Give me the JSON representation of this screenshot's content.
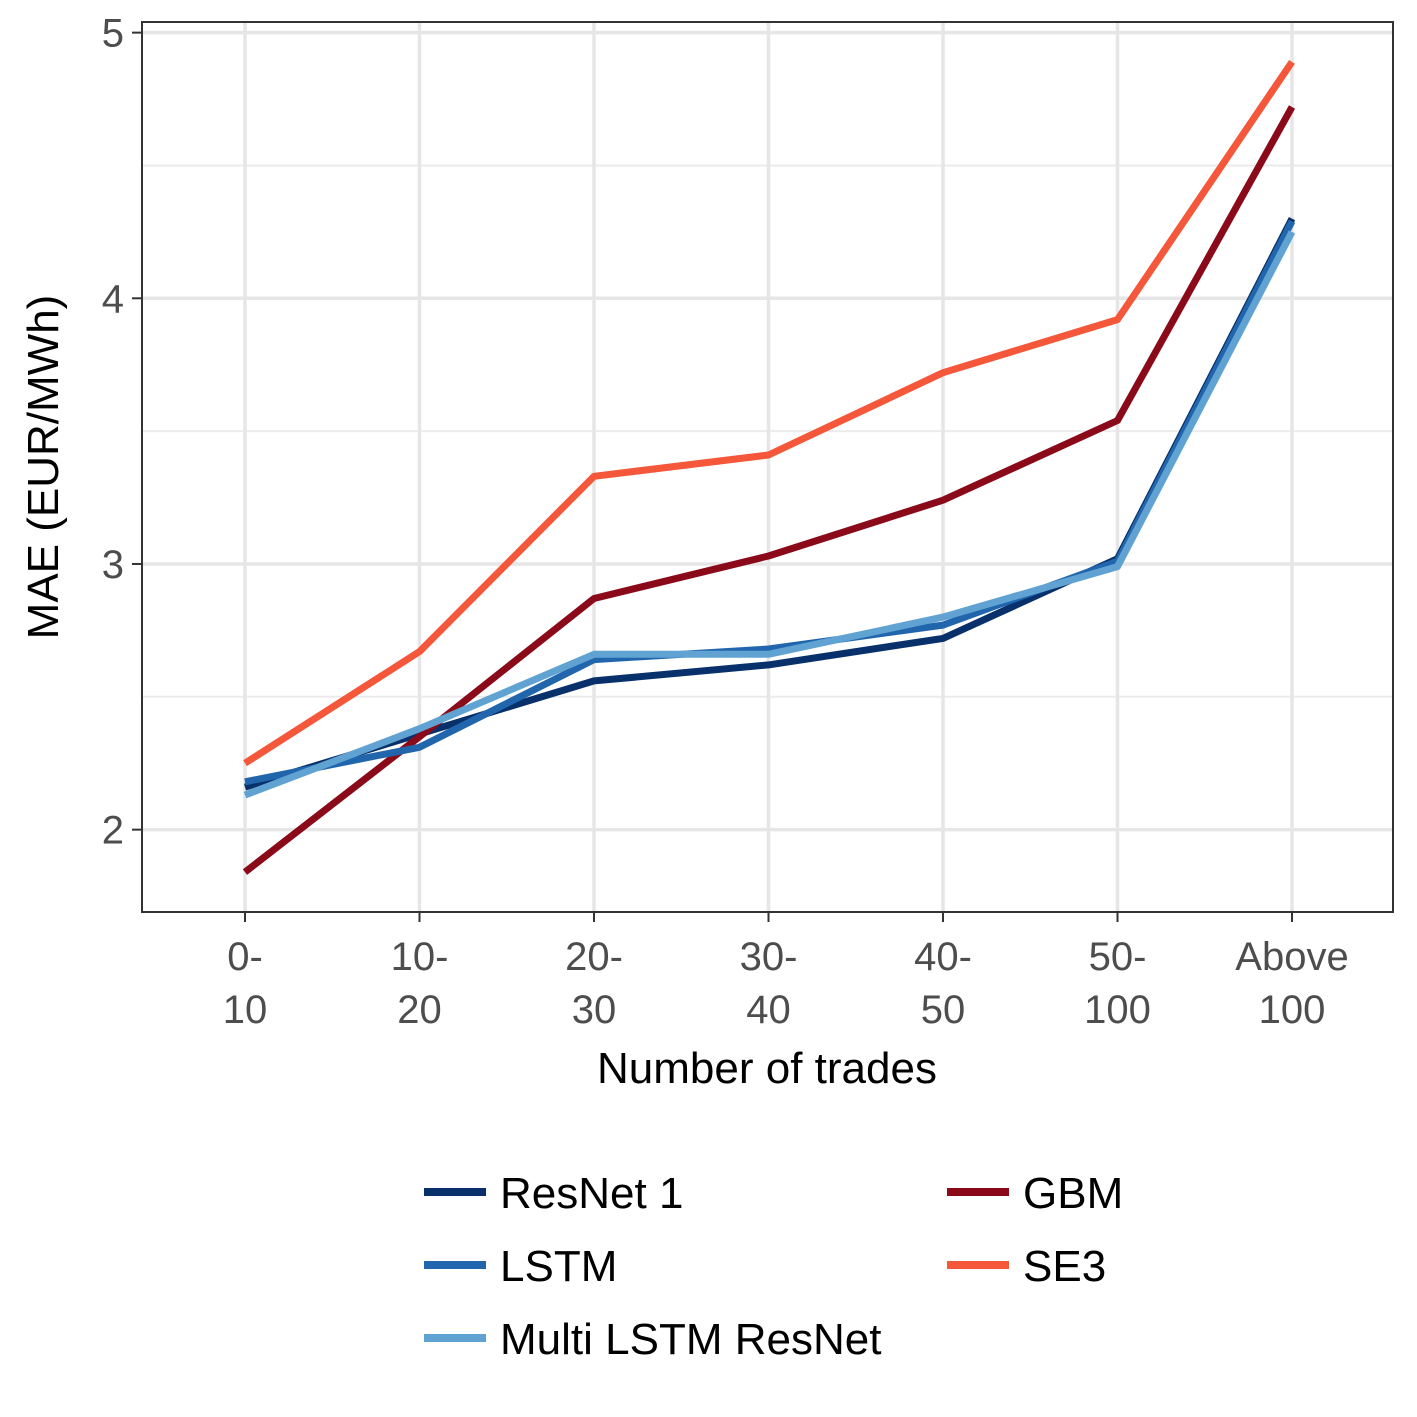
{
  "chart_data": {
    "type": "line",
    "title": "",
    "xlabel": "Number of trades",
    "ylabel": "MAE (EUR/MWh)",
    "categories": [
      [
        "0-",
        "10"
      ],
      [
        "10-",
        "20"
      ],
      [
        "20-",
        "30"
      ],
      [
        "30-",
        "40"
      ],
      [
        "40-",
        "50"
      ],
      [
        "50-",
        "100"
      ],
      [
        "Above",
        "100"
      ]
    ],
    "ylim": [
      1.69,
      5.04
    ],
    "yticks": [
      2,
      3,
      4,
      5
    ],
    "grid": true,
    "legend_position": "bottom",
    "series": [
      {
        "name": "ResNet 1",
        "color": "#08306b",
        "values": [
          2.16,
          2.36,
          2.56,
          2.62,
          2.72,
          3.02,
          4.3
        ]
      },
      {
        "name": "GBM",
        "color": "#8b0a1a",
        "values": [
          1.84,
          2.35,
          2.87,
          3.03,
          3.24,
          3.54,
          4.72
        ]
      },
      {
        "name": "LSTM",
        "color": "#2166ac",
        "values": [
          2.18,
          2.31,
          2.64,
          2.68,
          2.77,
          3.01,
          4.29
        ]
      },
      {
        "name": "SE3",
        "color": "#f4573a",
        "values": [
          2.25,
          2.67,
          3.33,
          3.41,
          3.72,
          3.92,
          4.89
        ]
      },
      {
        "name": "Multi LSTM ResNet",
        "color": "#60a3d3",
        "values": [
          2.13,
          2.38,
          2.66,
          2.66,
          2.8,
          2.99,
          4.25
        ]
      }
    ]
  }
}
